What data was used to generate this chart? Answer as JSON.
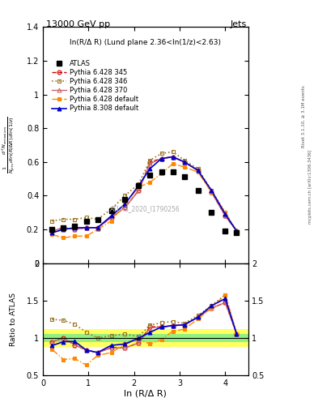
{
  "title_left": "13000 GeV pp",
  "title_right": "Jets",
  "annotation": "ln(R/Δ R) (Lund plane 2.36<ln(1/z)<2.63)",
  "watermark": "ATLAS_2020_I1790256",
  "right_label_top": "Rivet 3.1.10, ≥ 3.1M events",
  "right_label_bot": "mcplots.cern.ch [arXiv:1306.3436]",
  "ylabel_main": "$\\frac{1}{N_{jets}}\\frac{d^2 N_{emissions}}{d\\ln(R/\\Delta R)\\,d\\ln(1/z)}$",
  "ylabel_ratio": "Ratio to ATLAS",
  "xlabel": "ln (R/Δ R)",
  "xlim": [
    0,
    4.5
  ],
  "ylim_main": [
    0,
    1.4
  ],
  "ylim_ratio": [
    0.5,
    2.0
  ],
  "x_data": [
    0.2,
    0.45,
    0.7,
    0.95,
    1.2,
    1.5,
    1.8,
    2.1,
    2.35,
    2.6,
    2.85,
    3.1,
    3.4,
    3.7,
    4.0,
    4.25
  ],
  "atlas": [
    0.2,
    0.21,
    0.22,
    0.25,
    0.26,
    0.31,
    0.38,
    0.46,
    0.52,
    0.54,
    0.54,
    0.51,
    0.43,
    0.3,
    0.19,
    0.18
  ],
  "py345": [
    0.19,
    0.21,
    0.2,
    0.21,
    0.21,
    0.27,
    0.33,
    0.43,
    0.6,
    0.62,
    0.63,
    0.6,
    0.55,
    0.42,
    0.28,
    0.19
  ],
  "py346": [
    0.25,
    0.26,
    0.26,
    0.27,
    0.26,
    0.32,
    0.4,
    0.47,
    0.61,
    0.65,
    0.66,
    0.61,
    0.56,
    0.43,
    0.3,
    0.19
  ],
  "py370": [
    0.19,
    0.21,
    0.2,
    0.21,
    0.21,
    0.27,
    0.33,
    0.43,
    0.59,
    0.62,
    0.63,
    0.6,
    0.55,
    0.42,
    0.28,
    0.19
  ],
  "pydef": [
    0.17,
    0.15,
    0.16,
    0.16,
    0.2,
    0.25,
    0.35,
    0.45,
    0.48,
    0.53,
    0.59,
    0.57,
    0.54,
    0.42,
    0.3,
    0.19
  ],
  "py8def": [
    0.18,
    0.2,
    0.21,
    0.21,
    0.21,
    0.28,
    0.35,
    0.46,
    0.56,
    0.62,
    0.63,
    0.6,
    0.55,
    0.43,
    0.29,
    0.19
  ],
  "err_green": 0.05,
  "err_yellow": 0.12,
  "color_345": "#cc0000",
  "color_346": "#9b7523",
  "color_370": "#cc6666",
  "color_def": "#ff8800",
  "color_py8": "#0000cc",
  "color_atlas": "#000000",
  "ms_atlas": 4.5,
  "ms_mc": 3.5,
  "lw": 1.0
}
